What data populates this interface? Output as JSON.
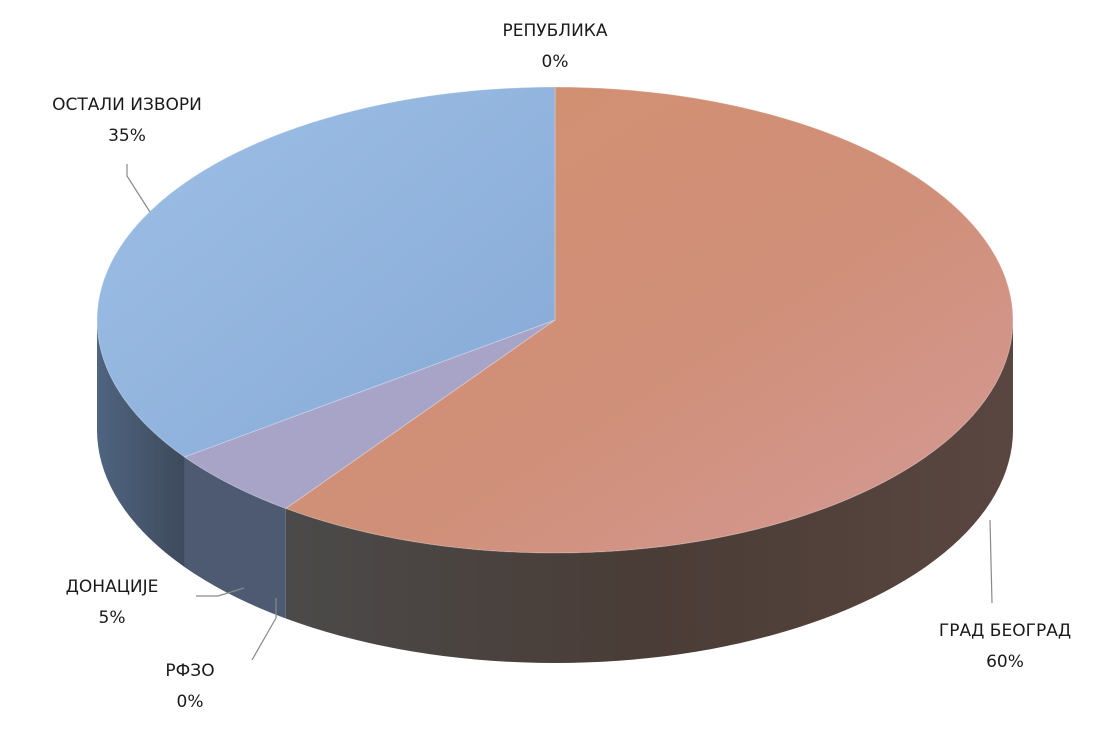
{
  "chart_data": {
    "type": "pie",
    "style": "3d",
    "title": "",
    "slices": [
      {
        "label": "РЕПУБЛИКА",
        "value_label": "0%",
        "value": 0,
        "color": "#b8736a"
      },
      {
        "label": "ГРАД БЕОГРАД",
        "value_label": "60%",
        "value": 60,
        "color": "#c98a6b"
      },
      {
        "label": "РФЗО",
        "value_label": "0%",
        "value": 0,
        "color": "#7d5a66"
      },
      {
        "label": "ДОНАЦИЈЕ",
        "value_label": "5%",
        "value": 5,
        "color": "#9a9cc4"
      },
      {
        "label": "ОСТАЛИ ИЗВОРИ",
        "value_label": "35%",
        "value": 35,
        "color": "#8fb2dc"
      }
    ],
    "legend": "none",
    "start_position": "top, clockwise"
  }
}
